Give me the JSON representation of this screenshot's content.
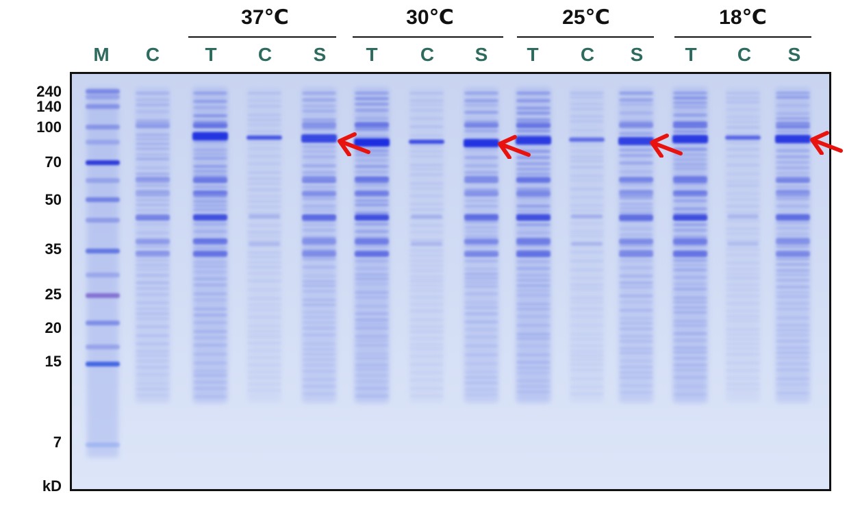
{
  "colors": {
    "lane_label": "#2e6b5e",
    "text": "#111111",
    "gel_background": "#d2dcf3",
    "band": "#2f3fe0",
    "arrow": "#e8130f"
  },
  "temperature_groups": [
    {
      "label": "37℃"
    },
    {
      "label": "30℃"
    },
    {
      "label": "25℃"
    },
    {
      "label": "18℃"
    }
  ],
  "lanes": [
    {
      "label": "M"
    },
    {
      "label": "C"
    },
    {
      "label": "T"
    },
    {
      "label": "C"
    },
    {
      "label": "S"
    },
    {
      "label": "T"
    },
    {
      "label": "C"
    },
    {
      "label": "S"
    },
    {
      "label": "T"
    },
    {
      "label": "C"
    },
    {
      "label": "S"
    },
    {
      "label": "T"
    },
    {
      "label": "C"
    },
    {
      "label": "S"
    }
  ],
  "marker_sizes": [
    {
      "label": "240"
    },
    {
      "label": "140"
    },
    {
      "label": "100"
    },
    {
      "label": "70"
    },
    {
      "label": "50"
    },
    {
      "label": "35"
    },
    {
      "label": "25"
    },
    {
      "label": "20"
    },
    {
      "label": "15"
    },
    {
      "label": "7"
    }
  ],
  "unit_label": "kD",
  "target_band_arrows": 4,
  "arrow_icon": "red-arrow-icon"
}
